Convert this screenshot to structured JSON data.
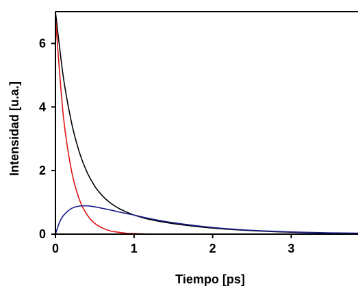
{
  "chart_data": {
    "type": "line",
    "title": "",
    "xlabel": "Tiempo [ps]",
    "ylabel": "Intensidad [u.a.]",
    "xlim": [
      0,
      3.85
    ],
    "ylim": [
      0,
      7.0
    ],
    "x_ticks": [
      0,
      1,
      2,
      3
    ],
    "y_ticks": [
      0,
      2,
      4,
      6
    ],
    "grid": false,
    "legend": "none",
    "series": [
      {
        "color": "#000000",
        "x": [
          0,
          0.1,
          0.2,
          0.3,
          0.4,
          0.5,
          0.6,
          0.7,
          0.8,
          0.9,
          1.0,
          1.2,
          1.5,
          2.0,
          2.5,
          3.0,
          3.5,
          3.85
        ],
        "y": [
          7.0,
          4.95,
          3.56,
          2.61,
          1.96,
          1.51,
          1.2,
          0.98,
          0.82,
          0.7,
          0.6,
          0.46,
          0.33,
          0.19,
          0.11,
          0.06,
          0.03,
          0.02
        ]
      },
      {
        "color": "#dd1111",
        "x": [
          0,
          0.1,
          0.2,
          0.3,
          0.4,
          0.5,
          0.6,
          0.7,
          0.8,
          0.9,
          1.0,
          1.2,
          1.5,
          2.0,
          3.0,
          3.85
        ],
        "y": [
          6.8,
          3.73,
          2.05,
          1.12,
          0.62,
          0.34,
          0.19,
          0.1,
          0.06,
          0.03,
          0.02,
          0.005,
          0.0,
          0.0,
          0.0,
          0.0
        ]
      },
      {
        "color": "#1a1a8c",
        "x": [
          0,
          0.05,
          0.1,
          0.2,
          0.3,
          0.4,
          0.5,
          0.6,
          0.7,
          0.8,
          0.9,
          1.0,
          1.2,
          1.5,
          2.0,
          2.5,
          3.0,
          3.5,
          3.85
        ],
        "y": [
          0.0,
          0.36,
          0.58,
          0.8,
          0.88,
          0.89,
          0.86,
          0.81,
          0.76,
          0.7,
          0.65,
          0.6,
          0.49,
          0.36,
          0.21,
          0.12,
          0.07,
          0.04,
          0.03
        ]
      }
    ]
  }
}
